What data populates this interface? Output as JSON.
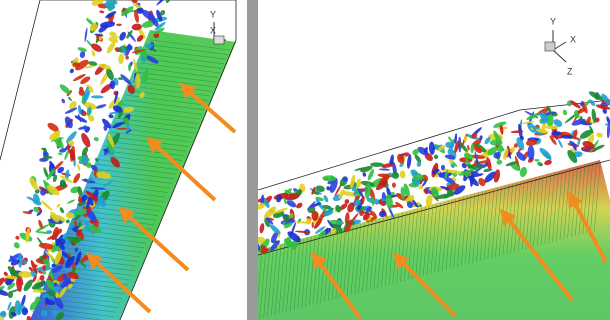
{
  "left_panel": {
    "axes": {
      "y": "Y",
      "x": "X"
    }
  },
  "right_panel": {
    "axes": {
      "y": "Y",
      "x": "X",
      "z": "Z"
    }
  }
}
